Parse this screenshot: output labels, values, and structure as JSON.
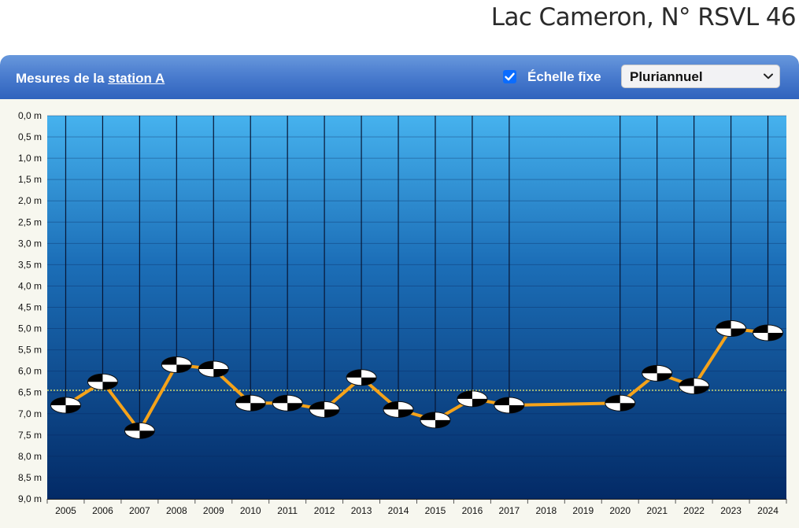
{
  "page": {
    "title": "Lac Cameron, N° RSVL 46"
  },
  "panel": {
    "title_prefix": "Mesures de la",
    "title_link": "station A",
    "fixed_scale_label": "Échelle fixe",
    "fixed_scale_checked": true,
    "period_selected": "Pluriannuel"
  },
  "colors": {
    "line": "#f5a31a",
    "reference_line": "#f0f06a",
    "water_top": "#46b2ee",
    "water_bottom": "#032a66"
  },
  "icons": {
    "checkbox": "check-icon",
    "select": "chevron-down-icon",
    "marker": "secchi-disk-icon"
  },
  "chart_data": {
    "type": "line",
    "x": [
      "2005",
      "2006",
      "2007",
      "2008",
      "2009",
      "2010",
      "2011",
      "2012",
      "2013",
      "2014",
      "2015",
      "2016",
      "2017",
      "2018",
      "2019",
      "2020",
      "2021",
      "2022",
      "2023",
      "2024"
    ],
    "y": [
      6.8,
      6.25,
      7.4,
      5.85,
      5.95,
      6.75,
      6.75,
      6.9,
      6.15,
      6.9,
      7.15,
      6.65,
      6.8,
      null,
      null,
      6.75,
      6.05,
      6.35,
      5.0,
      5.1
    ],
    "yticks": [
      "0,0 m",
      "0,5 m",
      "1,0 m",
      "1,5 m",
      "2,0 m",
      "2,5 m",
      "3,0 m",
      "3,5 m",
      "4,0 m",
      "4,5 m",
      "5,0 m",
      "5,5 m",
      "6,0 m",
      "6,5 m",
      "7,0 m",
      "7,5 m",
      "8,0 m",
      "8,5 m",
      "9,0 m"
    ],
    "ylim": [
      0,
      9
    ],
    "y_inverted": true,
    "reference_line": 6.45,
    "grid": true
  }
}
